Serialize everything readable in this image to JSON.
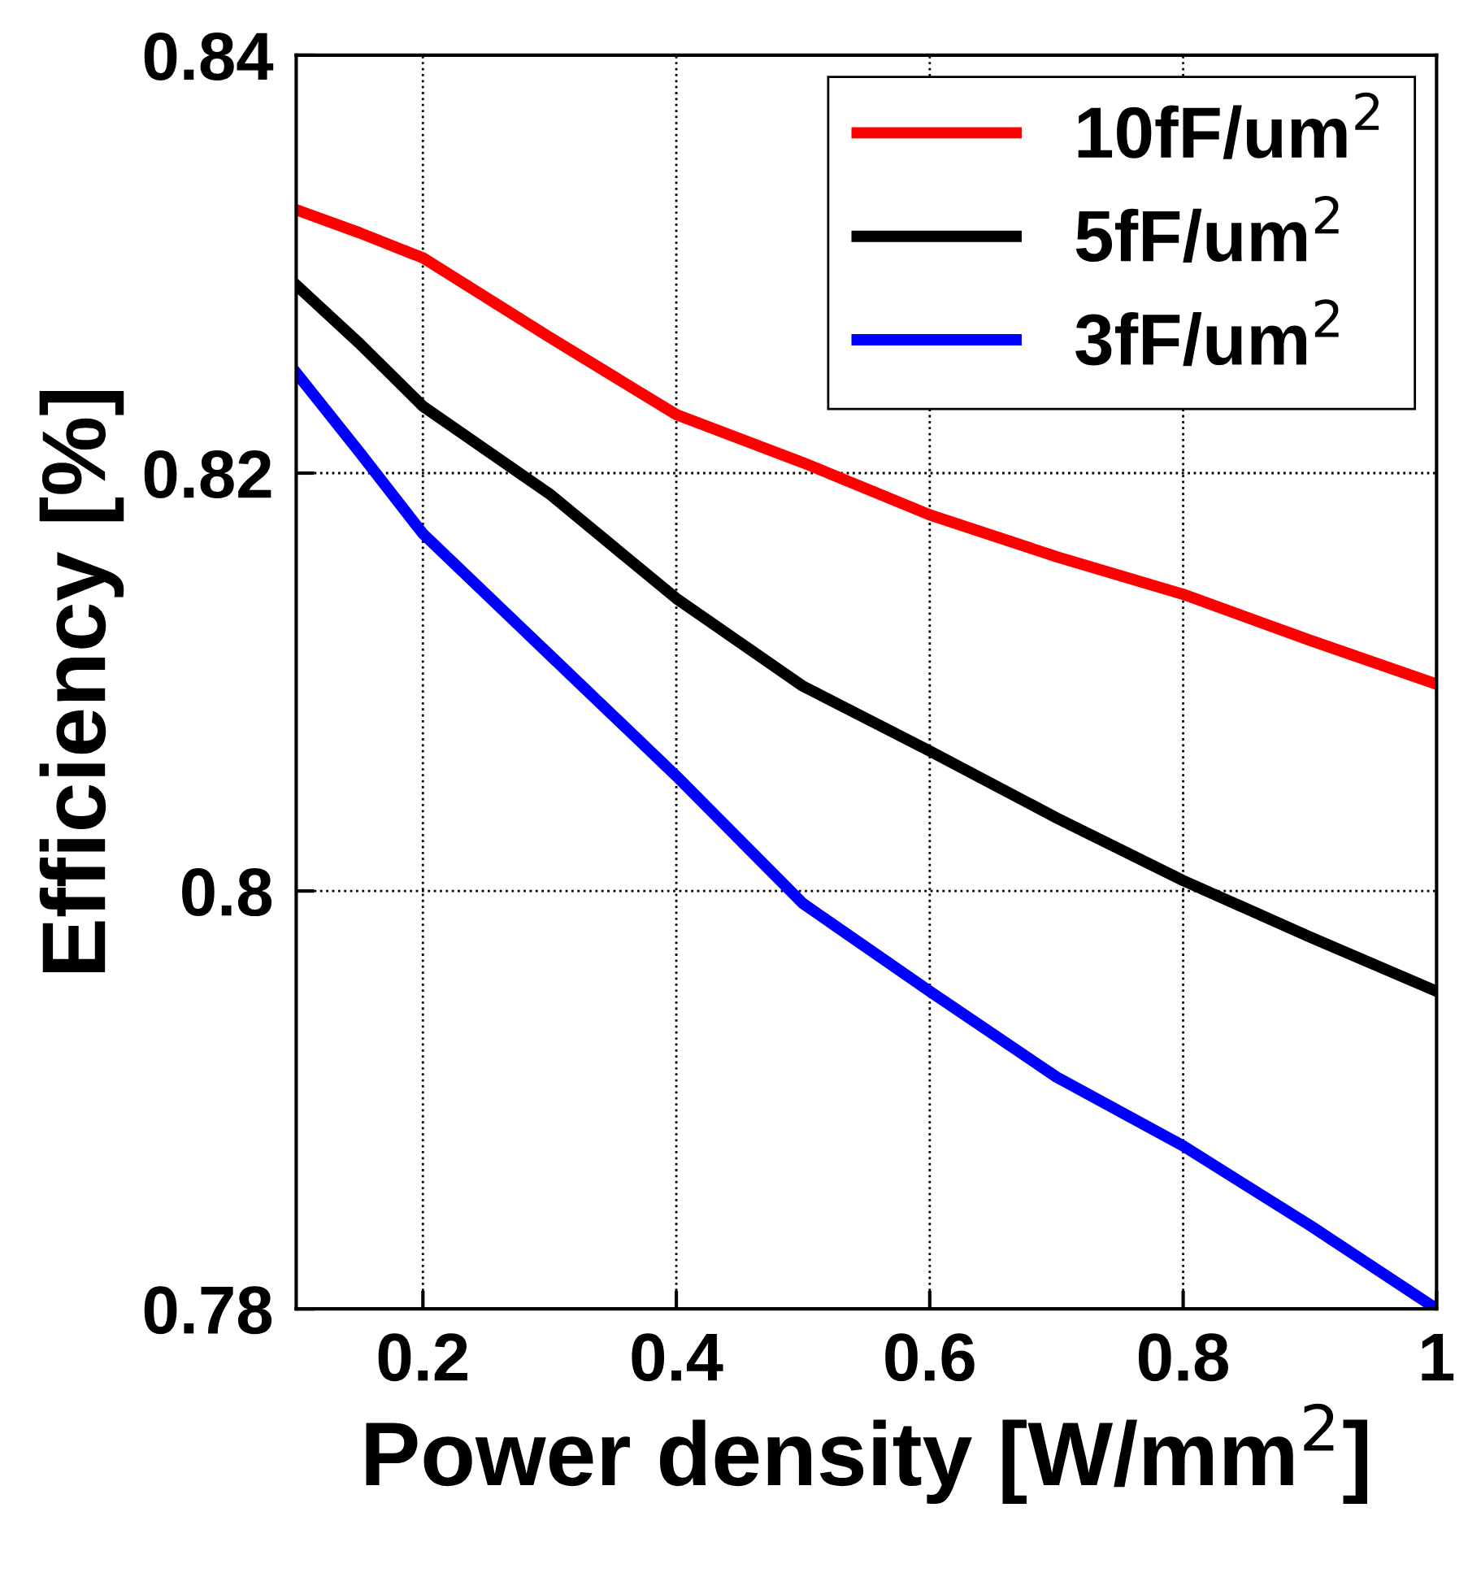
{
  "chart_data": {
    "type": "line",
    "xlabel": "Power density [W/mm$^{2}$]",
    "ylabel": "Efficiency [%]",
    "x": [
      0.1,
      0.15,
      0.2,
      0.3,
      0.4,
      0.5,
      0.6,
      0.7,
      0.8,
      0.9,
      1.0
    ],
    "series": [
      {
        "name": "10fF/um$^{2}$",
        "color": "#ff0000",
        "values": [
          0.8326,
          0.8315,
          0.8303,
          0.8265,
          0.8228,
          0.8205,
          0.818,
          0.816,
          0.8142,
          0.812,
          0.8099
        ]
      },
      {
        "name": "5fF/um$^{2}$",
        "color": "#000000",
        "values": [
          0.829,
          0.8262,
          0.8232,
          0.819,
          0.814,
          0.8098,
          0.8067,
          0.8035,
          0.8005,
          0.7978,
          0.7952
        ]
      },
      {
        "name": "3fF/um$^{2}$",
        "color": "#0000ff",
        "values": [
          0.8248,
          0.821,
          0.8171,
          0.8113,
          0.8055,
          0.7994,
          0.7952,
          0.7911,
          0.7878,
          0.784,
          0.78
        ]
      }
    ],
    "xlim": [
      0.1,
      1
    ],
    "ylim": [
      0.78,
      0.84
    ],
    "xticks": [
      0.2,
      0.4,
      0.6,
      0.8,
      1
    ],
    "yticks": [
      0.78,
      0.8,
      0.82,
      0.84
    ],
    "grid": true,
    "legend": "top right",
    "line_style": "solid",
    "marker": "none"
  }
}
